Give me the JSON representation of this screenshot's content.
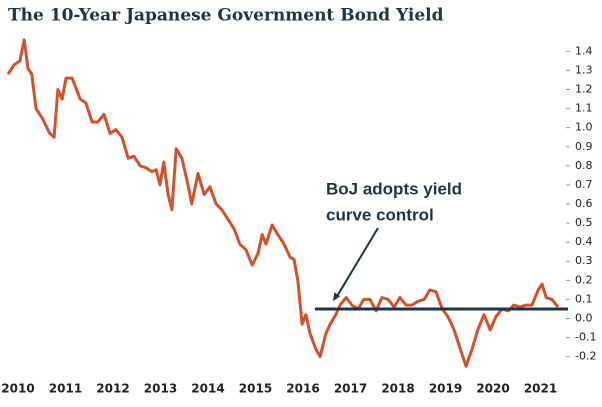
{
  "chart_data": {
    "type": "line",
    "title": "The 10-Year Japanese Government Bond Yield",
    "color": "#d4512a",
    "x": [
      2009.79,
      2009.92,
      2010.04,
      2010.13,
      2010.21,
      2010.29,
      2010.38,
      2010.51,
      2010.67,
      2010.76,
      2010.84,
      2010.93,
      2011.01,
      2011.14,
      2011.31,
      2011.43,
      2011.56,
      2011.68,
      2011.81,
      2011.94,
      2012.06,
      2012.19,
      2012.32,
      2012.44,
      2012.57,
      2012.69,
      2012.82,
      2012.91,
      2012.99,
      2013.07,
      2013.16,
      2013.24,
      2013.33,
      2013.45,
      2013.58,
      2013.66,
      2013.79,
      2013.92,
      2014.04,
      2014.17,
      2014.29,
      2014.42,
      2014.55,
      2014.67,
      2014.8,
      2014.93,
      2015.05,
      2015.14,
      2015.22,
      2015.35,
      2015.47,
      2015.6,
      2015.73,
      2015.81,
      2015.89,
      2015.98,
      2016.06,
      2016.15,
      2016.27,
      2016.36,
      2016.48,
      2016.57,
      2016.69,
      2016.78,
      2016.91,
      2017.03,
      2017.16,
      2017.28,
      2017.41,
      2017.54,
      2017.66,
      2017.79,
      2017.92,
      2018.04,
      2018.17,
      2018.29,
      2018.42,
      2018.55,
      2018.67,
      2018.8,
      2018.93,
      2019.05,
      2019.18,
      2019.31,
      2019.43,
      2019.56,
      2019.68,
      2019.81,
      2019.94,
      2020.06,
      2020.19,
      2020.32,
      2020.44,
      2020.57,
      2020.69,
      2020.82,
      2020.95,
      2021.03,
      2021.12,
      2021.24,
      2021.37
    ],
    "values": [
      1.28,
      1.33,
      1.35,
      1.46,
      1.31,
      1.28,
      1.1,
      1.05,
      0.97,
      0.95,
      1.2,
      1.15,
      1.26,
      1.26,
      1.15,
      1.13,
      1.03,
      1.03,
      1.07,
      0.97,
      0.99,
      0.95,
      0.84,
      0.85,
      0.8,
      0.79,
      0.77,
      0.78,
      0.7,
      0.82,
      0.65,
      0.57,
      0.89,
      0.84,
      0.7,
      0.6,
      0.76,
      0.65,
      0.69,
      0.6,
      0.57,
      0.52,
      0.47,
      0.39,
      0.36,
      0.28,
      0.34,
      0.44,
      0.39,
      0.49,
      0.44,
      0.39,
      0.32,
      0.31,
      0.2,
      -0.03,
      0.02,
      -0.08,
      -0.16,
      -0.2,
      -0.08,
      -0.03,
      0.02,
      0.07,
      0.11,
      0.07,
      0.05,
      0.1,
      0.1,
      0.04,
      0.11,
      0.1,
      0.06,
      0.11,
      0.07,
      0.07,
      0.09,
      0.1,
      0.15,
      0.14,
      0.05,
      0.01,
      -0.06,
      -0.16,
      -0.25,
      -0.16,
      -0.06,
      0.02,
      -0.06,
      0.01,
      0.05,
      0.04,
      0.07,
      0.06,
      0.07,
      0.07,
      0.15,
      0.18,
      0.11,
      0.1,
      0.06
    ],
    "xlim": [
      2009.79,
      2021.62
    ],
    "xticks": [
      2010,
      2011,
      2012,
      2013,
      2014,
      2015,
      2016,
      2017,
      2018,
      2019,
      2020,
      2021
    ],
    "ylim": [
      -0.27,
      1.47
    ],
    "yticks": [
      1.4,
      1.3,
      1.2,
      1.1,
      {
        "value": 1,
        "label": "1.0"
      },
      0.9,
      0.8,
      0.7,
      0.6,
      0.5,
      0.4,
      0.3,
      0.2,
      0.1,
      {
        "value": 0,
        "label": "0.0"
      },
      -0.1,
      -0.2
    ],
    "reference_line": {
      "y": 0.05,
      "x_start": 2016.25,
      "x_end": 2021.58,
      "color": "#1c3548"
    },
    "annotation": {
      "lines": [
        "BoJ adopts yield",
        "curve control"
      ],
      "xy": [
        2016.63,
        0.09
      ],
      "color": "#1c3548"
    }
  }
}
